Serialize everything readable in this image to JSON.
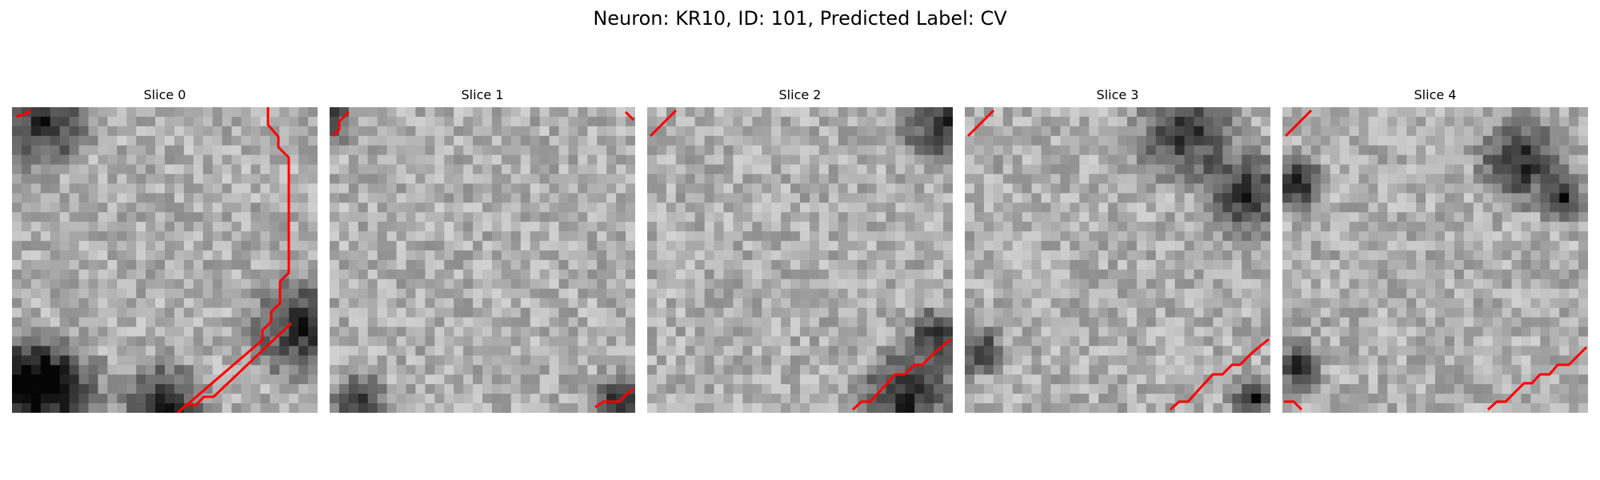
{
  "figure": {
    "title": "Neuron: KR10, ID: 101, Predicted Label: CV"
  },
  "panels": [
    {
      "title": "Slice 0",
      "texture_seed": 11,
      "dark_regions": [
        [
          0.02,
          0.88,
          0.2
        ],
        [
          0.15,
          0.93,
          0.2
        ],
        [
          0.5,
          0.97,
          0.18
        ],
        [
          0.95,
          0.72,
          0.22
        ],
        [
          0.1,
          0.05,
          0.2
        ]
      ]
    },
    {
      "title": "Slice 1",
      "texture_seed": 23,
      "dark_regions": [
        [
          0.95,
          0.97,
          0.13
        ],
        [
          0.1,
          0.97,
          0.12
        ],
        [
          0.0,
          0.05,
          0.1
        ]
      ]
    },
    {
      "title": "Slice 2",
      "texture_seed": 37,
      "dark_regions": [
        [
          0.97,
          0.05,
          0.18
        ],
        [
          0.85,
          0.95,
          0.2
        ],
        [
          0.95,
          0.75,
          0.12
        ]
      ]
    },
    {
      "title": "Slice 3",
      "texture_seed": 53,
      "dark_regions": [
        [
          0.72,
          0.08,
          0.2
        ],
        [
          0.92,
          0.28,
          0.18
        ],
        [
          0.95,
          0.95,
          0.1
        ],
        [
          0.05,
          0.8,
          0.1
        ]
      ]
    },
    {
      "title": "Slice 4",
      "texture_seed": 71,
      "dark_regions": [
        [
          0.78,
          0.18,
          0.18
        ],
        [
          0.92,
          0.3,
          0.1
        ],
        [
          0.05,
          0.85,
          0.1
        ],
        [
          0.05,
          0.25,
          0.12
        ]
      ]
    }
  ],
  "overlay": {
    "contour_color": "#ff0000"
  }
}
